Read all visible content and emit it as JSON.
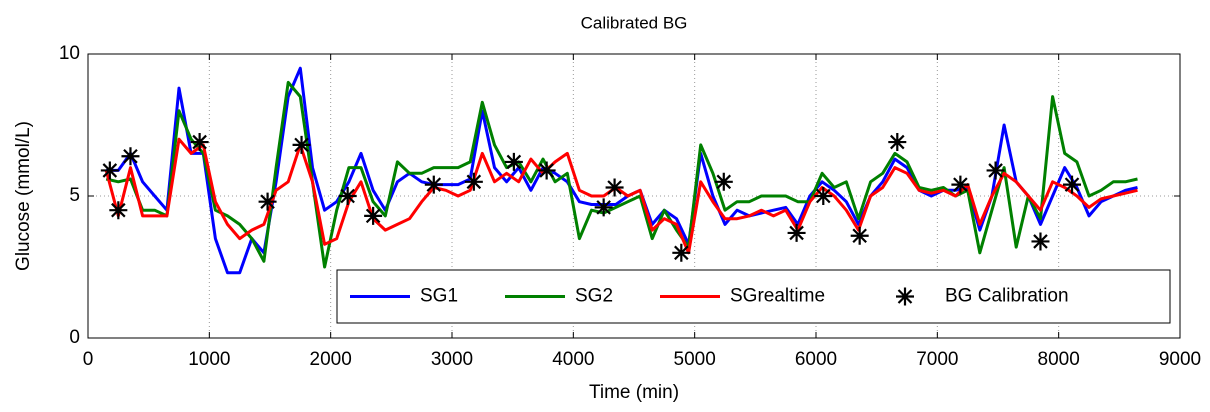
{
  "chart_data": {
    "type": "line",
    "title": "Calibrated BG",
    "x_label": "Time (min)",
    "y_label": "Glucose (mmol/L)",
    "x": [
      150,
      250,
      350,
      450,
      550,
      650,
      750,
      850,
      950,
      1050,
      1150,
      1250,
      1350,
      1450,
      1550,
      1650,
      1750,
      1850,
      1950,
      2050,
      2150,
      2250,
      2350,
      2450,
      2550,
      2650,
      2750,
      2850,
      2950,
      3050,
      3150,
      3250,
      3350,
      3450,
      3550,
      3650,
      3750,
      3850,
      3950,
      4050,
      4150,
      4250,
      4350,
      4450,
      4550,
      4650,
      4750,
      4850,
      4950,
      5050,
      5150,
      5250,
      5350,
      5450,
      5550,
      5650,
      5750,
      5850,
      5950,
      6050,
      6150,
      6250,
      6350,
      6450,
      6550,
      6650,
      6750,
      6850,
      6950,
      7050,
      7150,
      7250,
      7350,
      7450,
      7550,
      7650,
      7750,
      7850,
      7950,
      8050,
      8150,
      8250,
      8350,
      8450,
      8550,
      8650
    ],
    "series": [
      {
        "name": "SG1",
        "color": "#0000ff",
        "values": [
          5.9,
          5.9,
          6.5,
          5.5,
          5.0,
          4.5,
          8.8,
          6.5,
          6.5,
          3.5,
          2.3,
          2.3,
          3.5,
          3.0,
          5.5,
          8.5,
          9.5,
          6.0,
          4.5,
          4.8,
          5.5,
          6.5,
          5.2,
          4.5,
          5.5,
          5.8,
          5.5,
          5.4,
          5.4,
          5.4,
          5.6,
          8.0,
          6.0,
          5.5,
          6.0,
          5.2,
          6.0,
          5.8,
          5.5,
          4.8,
          4.7,
          4.7,
          4.7,
          5.0,
          5.2,
          4.0,
          4.5,
          4.2,
          3.3,
          6.5,
          5.0,
          4.0,
          4.5,
          4.3,
          4.4,
          4.5,
          4.6,
          4.0,
          5.0,
          5.5,
          5.2,
          4.8,
          4.0,
          5.0,
          5.5,
          6.3,
          6.0,
          5.2,
          5.0,
          5.2,
          5.2,
          5.3,
          3.8,
          5.0,
          7.5,
          5.5,
          5.0,
          4.0,
          5.0,
          6.0,
          5.3,
          4.3,
          4.8,
          5.0,
          5.2,
          5.3
        ]
      },
      {
        "name": "SG2",
        "color": "#008000",
        "values": [
          5.6,
          5.5,
          5.6,
          4.5,
          4.5,
          4.3,
          8.0,
          7.0,
          6.5,
          4.5,
          4.3,
          4.0,
          3.5,
          2.7,
          6.0,
          9.0,
          8.5,
          5.5,
          2.5,
          4.5,
          6.0,
          6.0,
          4.8,
          4.3,
          6.2,
          5.8,
          5.8,
          6.0,
          6.0,
          6.0,
          6.2,
          8.3,
          6.8,
          6.0,
          6.2,
          5.5,
          6.3,
          5.5,
          5.8,
          3.5,
          4.5,
          4.4,
          4.6,
          4.8,
          5.0,
          3.5,
          4.5,
          3.8,
          3.2,
          6.8,
          5.8,
          4.5,
          4.8,
          4.8,
          5.0,
          5.0,
          5.0,
          4.8,
          4.8,
          5.8,
          5.3,
          5.5,
          4.2,
          5.5,
          5.8,
          6.5,
          6.2,
          5.3,
          5.2,
          5.3,
          5.0,
          5.2,
          3.0,
          4.5,
          6.0,
          3.2,
          5.0,
          4.2,
          8.5,
          6.5,
          6.2,
          5.0,
          5.2,
          5.5,
          5.5,
          5.6
        ]
      },
      {
        "name": "SGrealtime",
        "color": "#ff0000",
        "values": [
          5.9,
          4.3,
          6.0,
          4.3,
          4.3,
          4.3,
          7.0,
          6.5,
          6.8,
          4.8,
          4.0,
          3.5,
          3.8,
          4.0,
          5.2,
          5.5,
          6.8,
          5.5,
          3.3,
          3.5,
          4.8,
          5.5,
          4.2,
          3.8,
          4.0,
          4.2,
          4.8,
          5.3,
          5.2,
          5.0,
          5.2,
          6.5,
          5.5,
          5.8,
          5.5,
          6.3,
          5.8,
          6.2,
          6.5,
          5.2,
          5.0,
          5.0,
          5.3,
          5.0,
          5.2,
          3.8,
          4.2,
          4.0,
          3.0,
          5.5,
          4.8,
          4.2,
          4.2,
          4.3,
          4.5,
          4.3,
          4.5,
          3.8,
          4.8,
          5.3,
          5.0,
          4.5,
          3.8,
          5.0,
          5.3,
          6.0,
          5.8,
          5.2,
          5.1,
          5.2,
          5.0,
          5.4,
          4.0,
          5.0,
          5.8,
          5.5,
          5.0,
          4.5,
          5.5,
          5.3,
          5.0,
          4.6,
          4.9,
          5.0,
          5.1,
          5.2
        ]
      },
      {
        "name": "BG Calibration",
        "type": "scatter",
        "color": "#000000",
        "marker": "asterisk",
        "x": [
          180,
          250,
          350,
          920,
          1480,
          1760,
          2140,
          2350,
          2850,
          3180,
          3510,
          3780,
          4250,
          4340,
          4890,
          5240,
          5840,
          6060,
          6360,
          6670,
          7190,
          7480,
          7850,
          8110
        ],
        "values": [
          5.9,
          4.5,
          6.4,
          6.9,
          4.8,
          6.8,
          5.0,
          4.3,
          5.4,
          5.5,
          6.2,
          5.9,
          4.6,
          5.3,
          3.0,
          5.5,
          3.7,
          5.0,
          3.6,
          6.9,
          5.4,
          5.9,
          3.4,
          5.4
        ]
      }
    ],
    "xlim": [
      0,
      9000
    ],
    "xticks": [
      0,
      1000,
      2000,
      3000,
      4000,
      5000,
      6000,
      7000,
      8000,
      9000
    ],
    "ylim": [
      0,
      10
    ],
    "yticks": [
      0,
      5,
      10
    ],
    "grid": true,
    "legend": "lower right"
  }
}
